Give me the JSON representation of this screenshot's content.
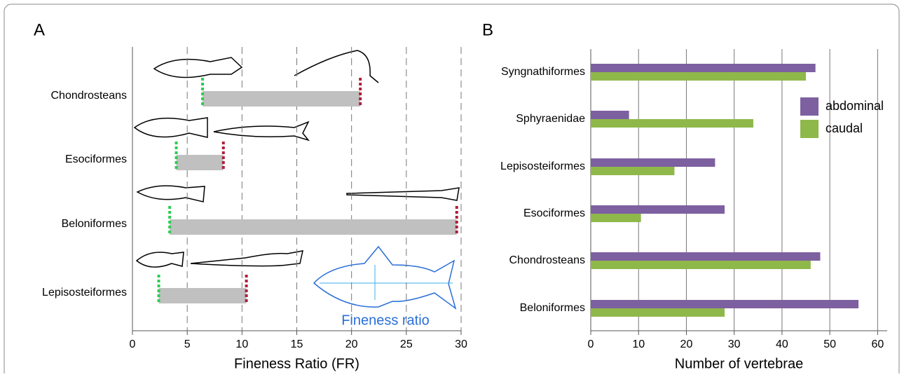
{
  "chart_data": [
    {
      "type": "range",
      "panel_label": "A",
      "x_label": "Fineness Ratio (FR)",
      "categories": [
        "Chondrosteans",
        "Esociformes",
        "Beloniformes",
        "Lepisosteiformes"
      ],
      "low": [
        6.4,
        4.0,
        3.4,
        2.4
      ],
      "high": [
        20.8,
        8.3,
        29.6,
        10.4
      ],
      "color": "#c0c0c0",
      "low_color": "#2ecc55",
      "high_color": "#b0203a",
      "xlim": [
        0,
        30
      ],
      "xticks": [
        0,
        5,
        10,
        15,
        20,
        25,
        30
      ],
      "grid": true,
      "annotation": "Fineness ratio"
    },
    {
      "type": "bar",
      "panel_label": "B",
      "x_label": "Number of vertebrae",
      "orientation": "horizontal",
      "categories": [
        "Syngnathiformes",
        "Sphyraenidae",
        "Lepisosteiformes",
        "Esociformes",
        "Chondrosteans",
        "Beloniformes"
      ],
      "series": [
        {
          "name": "abdominal",
          "color": "#7d60a0",
          "values": [
            47,
            8,
            26,
            28,
            48,
            56
          ]
        },
        {
          "name": "caudal",
          "color": "#8fb84a",
          "values": [
            45,
            34,
            17.5,
            10.5,
            46,
            28
          ]
        }
      ],
      "xlim": [
        0,
        62
      ],
      "xticks": [
        0,
        10,
        20,
        30,
        40,
        50,
        60
      ],
      "grid": true,
      "legend": "upper right"
    }
  ]
}
